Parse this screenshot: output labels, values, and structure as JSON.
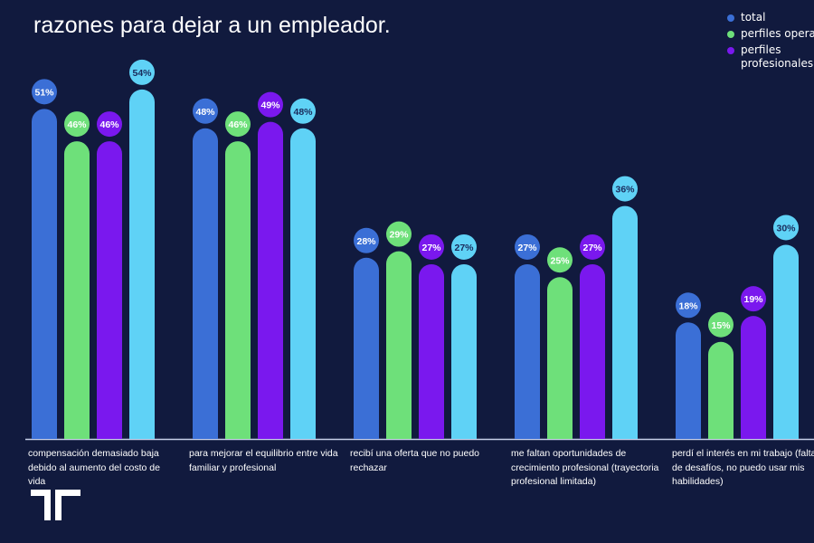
{
  "chart_data": {
    "type": "bar",
    "title": "razones para dejar a un empleador.",
    "categories": [
      "compensación demasiado baja debido al aumento del costo de vida",
      "para mejorar el equilibrio entre vida familiar y profesional",
      "recibí una oferta que no puedo rechazar",
      "me faltan oportunidades de crecimiento profesional (trayectoria profesional limitada)",
      "perdí el interés en mi trabajo (falta de desafíos, no puedo usar mis habilidades)"
    ],
    "series": [
      {
        "name": "total",
        "color": "#3b6fd6",
        "values": [
          51,
          48,
          28,
          27,
          18
        ]
      },
      {
        "name": "perfiles operativos",
        "color": "#6ee07a",
        "values": [
          46,
          46,
          29,
          25,
          15
        ]
      },
      {
        "name": "perfiles profesionales",
        "color": "#7a18ee",
        "values": [
          46,
          49,
          27,
          27,
          19
        ]
      },
      {
        "color": "#5fd2f6",
        "values": [
          54,
          48,
          27,
          36,
          30
        ]
      }
    ],
    "value_suffix": "%",
    "ylim": [
      0,
      60
    ],
    "grid": false,
    "legend_position": "top-right",
    "legend_visible_labels": [
      "total",
      "perfiles operat",
      "perfiles profesionales"
    ]
  },
  "background": "#111a3e"
}
